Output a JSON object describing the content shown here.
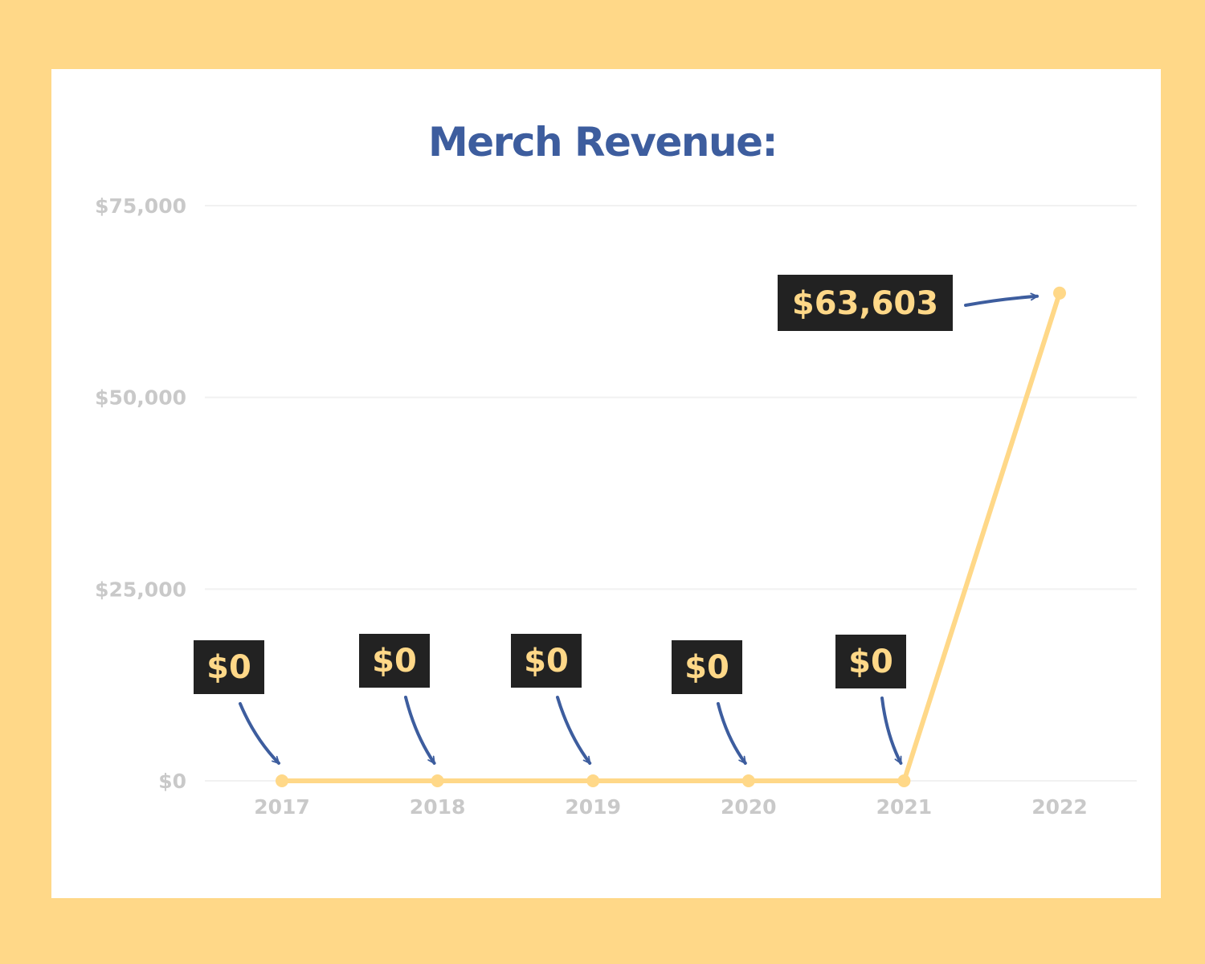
{
  "chart_data": {
    "type": "line",
    "title": "Merch Revenue:",
    "xlabel": "",
    "ylabel": "",
    "categories": [
      "2017",
      "2018",
      "2019",
      "2020",
      "2021",
      "2022"
    ],
    "values": [
      0,
      0,
      0,
      0,
      0,
      63603
    ],
    "data_labels": [
      "$0",
      "$0",
      "$0",
      "$0",
      "$0",
      "$63,603"
    ],
    "ylim": [
      0,
      75000
    ],
    "yticks": [
      0,
      25000,
      50000,
      75000
    ],
    "ytick_labels": [
      "$0",
      "$25,000",
      "$50,000",
      "$75,000"
    ],
    "grid": true,
    "legend": "none",
    "colors": {
      "line": "#FFD888",
      "title": "#3D5D9E",
      "tick_text": "#C9C9C9",
      "gridline": "#F1F1F1",
      "label_box": "#222222",
      "label_text": "#FFD888",
      "arrow": "#3D5D9E",
      "background": "#FFD888",
      "card": "#FFFFFF"
    }
  }
}
